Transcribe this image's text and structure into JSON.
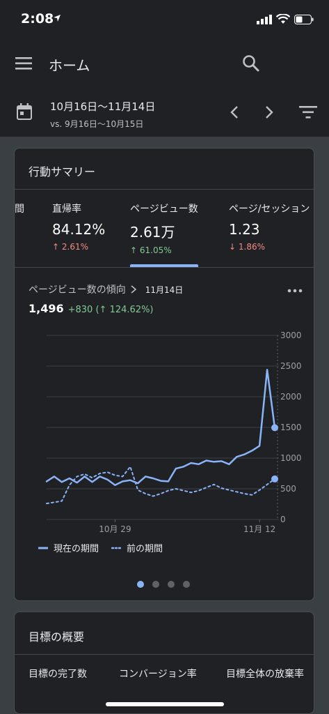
{
  "status": {
    "time": "2:08"
  },
  "appbar": {
    "title": "ホーム"
  },
  "datebar": {
    "range": "10月16日〜11月14日",
    "compare": "vs. 9月16日〜10月15日"
  },
  "summary": {
    "title": "行動サマリー",
    "partial_label": "間",
    "metrics": [
      {
        "label": "直帰率",
        "value": "84.12%",
        "change": "2.61%",
        "direction": "up",
        "tone": "down"
      },
      {
        "label": "ページビュー数",
        "value": "2.61万",
        "change": "61.05%",
        "direction": "up",
        "tone": "up"
      },
      {
        "label": "ページ/セッション",
        "value": "1.23",
        "change": "1.86%",
        "direction": "down",
        "tone": "down"
      }
    ],
    "selected_index": 1
  },
  "trend": {
    "title": "ページビュー数の傾向",
    "date": "11月14日",
    "value": "1,496",
    "delta": "+830",
    "delta_pct": "124.62%"
  },
  "chart_data": {
    "type": "line",
    "ylim": [
      0,
      3000
    ],
    "yticks": [
      "3000",
      "2500",
      "2000",
      "1500",
      "1000",
      "500",
      "0"
    ],
    "xtick_labels": [
      "10月 29",
      "11月 12"
    ],
    "legend_position": "bottom",
    "series": [
      {
        "name": "現在の期間",
        "style": "solid",
        "color": "#8ab4f8",
        "values": [
          620,
          700,
          610,
          670,
          600,
          700,
          610,
          700,
          650,
          560,
          620,
          640,
          590,
          700,
          670,
          630,
          620,
          830,
          860,
          920,
          900,
          960,
          940,
          950,
          900,
          1020,
          1060,
          1120,
          1200,
          2440,
          1496
        ]
      },
      {
        "name": "前の期間",
        "style": "dotted",
        "color": "#8ab4f8",
        "values": [
          260,
          280,
          300,
          560,
          700,
          740,
          680,
          750,
          770,
          720,
          700,
          860,
          480,
          420,
          380,
          420,
          470,
          500,
          470,
          440,
          470,
          520,
          570,
          510,
          480,
          450,
          420,
          400,
          480,
          570,
          660
        ]
      }
    ]
  },
  "pager": {
    "count": 4,
    "active": 0
  },
  "goals": {
    "title": "目標の概要",
    "labels": [
      "目標の完了数",
      "コンバージョン率",
      "目標全体の放棄率"
    ]
  }
}
